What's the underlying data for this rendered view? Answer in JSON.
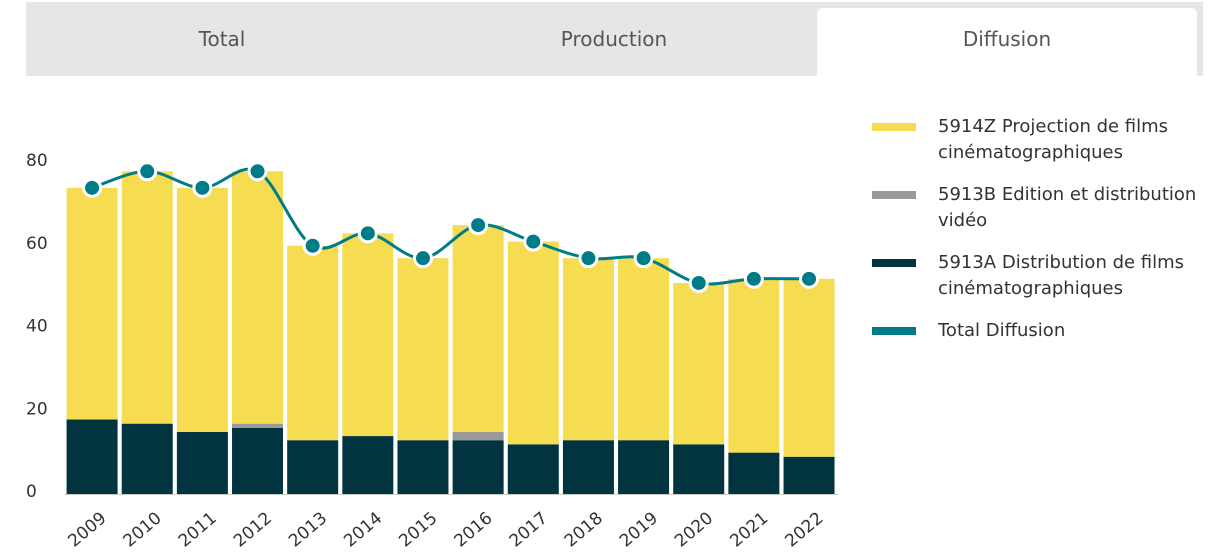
{
  "tabs": [
    "Total",
    "Production",
    "Diffusion"
  ],
  "active_tab": 2,
  "chart_data": {
    "type": "stacked-bar-line",
    "categories": [
      "2009",
      "2010",
      "2011",
      "2012",
      "2013",
      "2014",
      "2015",
      "2016",
      "2017",
      "2018",
      "2019",
      "2020",
      "2021",
      "2022"
    ],
    "series": [
      {
        "name": "5913A Distribution de films cinématographiques",
        "color": "#02343f",
        "values": [
          18,
          17,
          15,
          16,
          13,
          14,
          13,
          13,
          12,
          13,
          13,
          12,
          10,
          9
        ]
      },
      {
        "name": "5913B Edition et distribution vidéo",
        "color": "#9a9a9a",
        "values": [
          0,
          0,
          0,
          1,
          0,
          0,
          0,
          2,
          0,
          0,
          0,
          0,
          0,
          0
        ]
      },
      {
        "name": "5914Z Projection de films cinématographiques",
        "color": "#f5dc50",
        "values": [
          56,
          61,
          59,
          61,
          47,
          49,
          44,
          50,
          49,
          44,
          44,
          39,
          42,
          43
        ]
      },
      {
        "name": "Total Diffusion",
        "color": "#007c89",
        "type": "line",
        "values": [
          74,
          78,
          74,
          78,
          60,
          63,
          57,
          65,
          61,
          57,
          57,
          51,
          52,
          52
        ]
      }
    ],
    "legend_order": [
      2,
      1,
      0,
      3
    ],
    "ylim": [
      0,
      80
    ],
    "yticks": [
      0,
      20,
      40,
      60,
      80
    ],
    "grid": false
  }
}
